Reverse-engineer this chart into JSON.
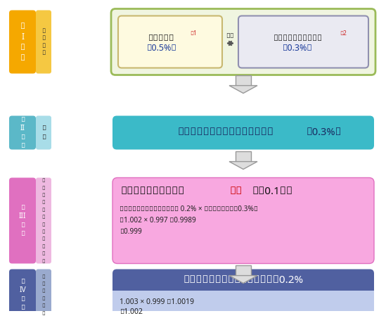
{
  "bg_color": "#ffffff",
  "stage1": {
    "label": "第\nI\n段\n階",
    "sub_label": "比\n較\n選\n択",
    "box_color": "#F5A800",
    "sub_color": "#F5C842",
    "outer_border": "#9BBB59",
    "outer_bg": "#F0F5E0",
    "box1_text": "物価変動率",
    "box1_sup": "※1",
    "box1_val": "【0.5%】",
    "box1_bg": "#FEFAE0",
    "box1_border": "#C8B870",
    "box2_text": "名目手取り賃金変動率",
    "box2_sup": "※2",
    "box2_val": "【0.3%】",
    "box2_bg": "#EAEAF2",
    "box2_border": "#9090B0",
    "compare_text": "比較"
  },
  "stage2": {
    "label": "第\nII\n段\n階",
    "sub_label": "決\n定",
    "box_color": "#5BB8C8",
    "sub_color": "#A8DDE8",
    "content_text": "名目手取り賃金変動率による改定",
    "content_val": "〔0.3%〕",
    "content_bg": "#3BBAC8"
  },
  "stage3": {
    "label": "第\nIII\n段\n階",
    "sub_label": "マ\nク\nロ\n経\n済\nス\nラ\nイ\nド\nの\n調\n整",
    "box_color": "#E070C0",
    "sub_color": "#EEB8E0",
    "content_title_black1": "マクロ経済スライドは",
    "content_title_red": "発動",
    "content_title_black2": "【▼0.1％】",
    "content_detail1": "（公的年金の被保険者総数の増 0.2% × 平均余命の伸び▼0.3%）",
    "content_detail2": "＝1.002 × 0.997 ＝0.9989",
    "content_detail3": "≒0.999",
    "content_bg": "#F8A8E0",
    "content_border": "#E070C0"
  },
  "stage4": {
    "label": "第\nIV\n段\n階",
    "sub_label": "改\n定\n率\nの\n算\n定",
    "box_color": "#5060A0",
    "sub_color": "#9AAACE",
    "content_title": "令和２年度の年金額の改定率は、0.2%",
    "content_detail1": "1.003 × 0.999 ＝1.0019",
    "content_detail2": "≒1.002",
    "content_bg": "#5060A0",
    "content_detail_bg": "#C0CCEC"
  },
  "arrow_body_color": "#DDDDDD",
  "arrow_edge_color": "#999999"
}
